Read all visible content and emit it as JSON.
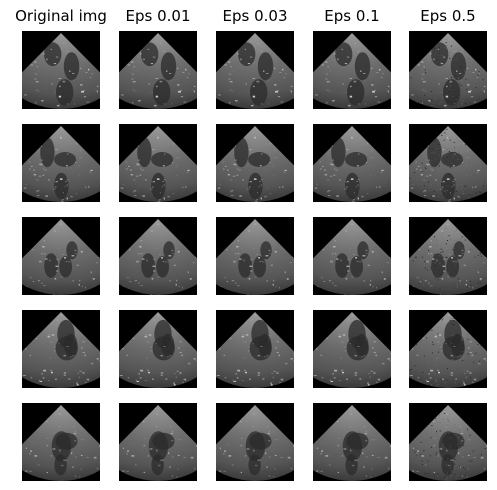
{
  "figure": {
    "columns": [
      {
        "title": "Original img"
      },
      {
        "title": "Eps 0.01"
      },
      {
        "title": "Eps 0.03"
      },
      {
        "title": "Eps 0.1"
      },
      {
        "title": "Eps 0.5"
      }
    ],
    "rows": 5
  }
}
